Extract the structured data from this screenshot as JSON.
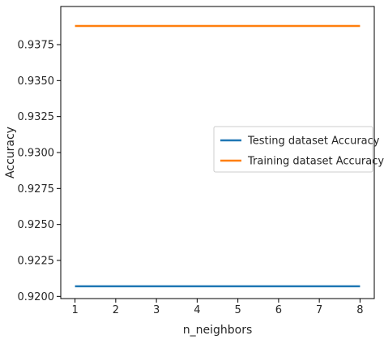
{
  "chart_data": {
    "type": "line",
    "title": "",
    "xlabel": "n_neighbors",
    "ylabel": "Accuracy",
    "x": [
      1,
      2,
      3,
      4,
      5,
      6,
      7,
      8
    ],
    "xticks": [
      "1",
      "2",
      "3",
      "4",
      "5",
      "6",
      "7",
      "8"
    ],
    "yticks": [
      "0.9200",
      "0.9225",
      "0.9250",
      "0.9275",
      "0.9300",
      "0.9325",
      "0.9350",
      "0.9375"
    ],
    "xlim": [
      0.65,
      8.35
    ],
    "ylim": [
      0.91985,
      0.94015
    ],
    "grid": false,
    "legend_position": "center-right",
    "series": [
      {
        "name": "Testing dataset Accuracy",
        "color": "#1f77b4",
        "values": [
          0.9207,
          0.9207,
          0.9207,
          0.9207,
          0.9207,
          0.9207,
          0.9207,
          0.9207
        ]
      },
      {
        "name": "Training dataset Accuracy",
        "color": "#ff7f0e",
        "values": [
          0.9388,
          0.9388,
          0.9388,
          0.9388,
          0.9388,
          0.9388,
          0.9388,
          0.9388
        ]
      }
    ]
  }
}
